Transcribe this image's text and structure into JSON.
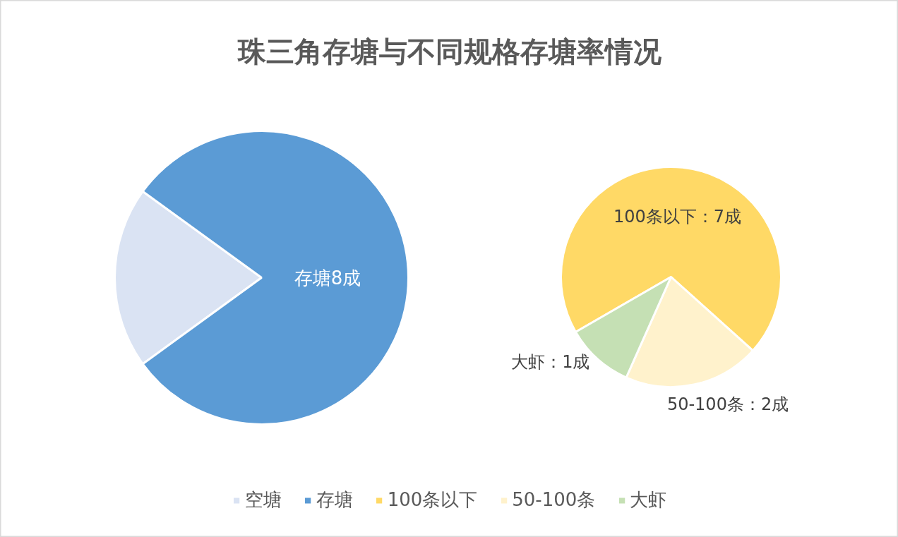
{
  "chart_data": [
    {
      "type": "pie",
      "title": "珠三角存塘与不同规格存塘率情况",
      "categories": [
        "空塘",
        "存塘"
      ],
      "values": [
        2,
        8
      ],
      "colors": [
        "#dae3f3",
        "#5b9bd5"
      ],
      "value_labels": [
        null,
        "存塘8成"
      ],
      "legend": "bottom"
    },
    {
      "type": "pie",
      "categories": [
        "100条以下",
        "50-100条",
        "大虾"
      ],
      "values": [
        7,
        2,
        1
      ],
      "colors": [
        "#ffd966",
        "#fff2cc",
        "#c5e0b4"
      ],
      "value_labels": [
        "100条以下：7成",
        "50-100条：2成",
        "大虾：1成"
      ],
      "legend": "bottom"
    }
  ]
}
